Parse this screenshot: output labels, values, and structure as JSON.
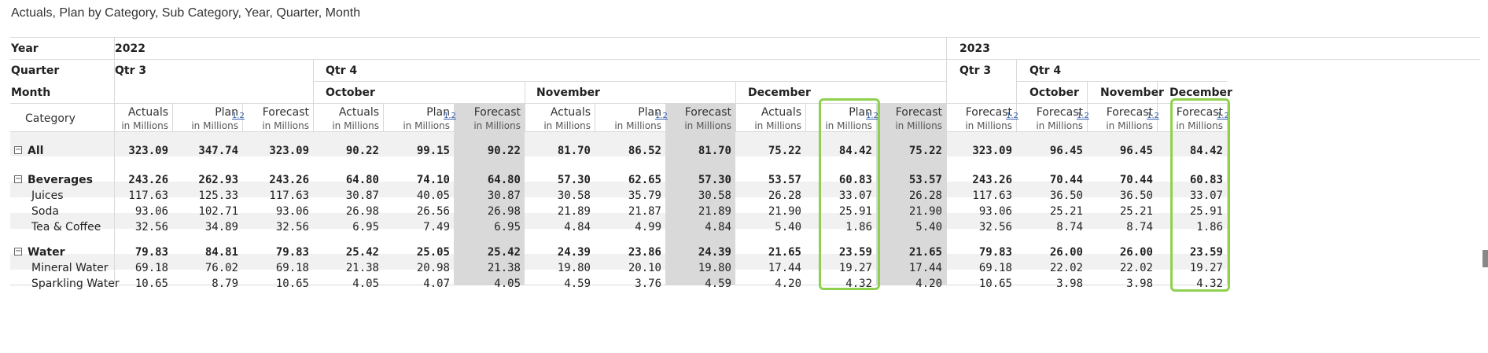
{
  "title": "Actuals, Plan by Category, Sub Category, Year, Quarter, Month",
  "row_labels": {
    "year": "Year",
    "quarter": "Quarter",
    "month": "Month",
    "category": "Category"
  },
  "years": [
    "2022",
    "2023"
  ],
  "quarters": [
    "Qtr 3",
    "Qtr 4",
    "Qtr 3",
    "Qtr 4"
  ],
  "months": [
    "October",
    "November",
    "December",
    "October",
    "November",
    "December"
  ],
  "columns": [
    {
      "label": "Actuals",
      "unit": "in Millions"
    },
    {
      "label": "Plan",
      "unit": "in Millions"
    },
    {
      "label": "Forecast",
      "unit": "in Millions"
    },
    {
      "label": "Actuals",
      "unit": "in Millions"
    },
    {
      "label": "Plan",
      "unit": "in Millions"
    },
    {
      "label": "Forecast",
      "unit": "in Millions"
    },
    {
      "label": "Actuals",
      "unit": "in Millions"
    },
    {
      "label": "Plan",
      "unit": "in Millions"
    },
    {
      "label": "Forecast",
      "unit": "in Millions"
    },
    {
      "label": "Actuals",
      "unit": "in Millions"
    },
    {
      "label": "Plan",
      "unit": "in Millions"
    },
    {
      "label": "Forecast",
      "unit": "in Millions"
    },
    {
      "label": "Forecast",
      "unit": "in Millions"
    },
    {
      "label": "Forecast",
      "unit": "in Millions"
    },
    {
      "label": "Forecast",
      "unit": "in Millions"
    },
    {
      "label": "Forecast",
      "unit": "in Millions"
    }
  ],
  "marker_label": "1.2",
  "expander_icon": "−",
  "rows": [
    {
      "label": "All",
      "values": [
        "323.09",
        "347.74",
        "323.09",
        "90.22",
        "99.15",
        "90.22",
        "81.70",
        "86.52",
        "81.70",
        "75.22",
        "84.42",
        "75.22",
        "323.09",
        "96.45",
        "96.45",
        "84.42"
      ]
    },
    {
      "label": "Beverages",
      "values": [
        "243.26",
        "262.93",
        "243.26",
        "64.80",
        "74.10",
        "64.80",
        "57.30",
        "62.65",
        "57.30",
        "53.57",
        "60.83",
        "53.57",
        "243.26",
        "70.44",
        "70.44",
        "60.83"
      ]
    },
    {
      "label": "Juices",
      "values": [
        "117.63",
        "125.33",
        "117.63",
        "30.87",
        "40.05",
        "30.87",
        "30.58",
        "35.79",
        "30.58",
        "26.28",
        "33.07",
        "26.28",
        "117.63",
        "36.50",
        "36.50",
        "33.07"
      ]
    },
    {
      "label": "Soda",
      "values": [
        "93.06",
        "102.71",
        "93.06",
        "26.98",
        "26.56",
        "26.98",
        "21.89",
        "21.87",
        "21.89",
        "21.90",
        "25.91",
        "21.90",
        "93.06",
        "25.21",
        "25.21",
        "25.91"
      ]
    },
    {
      "label": "Tea & Coffee",
      "values": [
        "32.56",
        "34.89",
        "32.56",
        "6.95",
        "7.49",
        "6.95",
        "4.84",
        "4.99",
        "4.84",
        "5.40",
        "1.86",
        "5.40",
        "32.56",
        "8.74",
        "8.74",
        "1.86"
      ]
    },
    {
      "label": "Water",
      "values": [
        "79.83",
        "84.81",
        "79.83",
        "25.42",
        "25.05",
        "25.42",
        "24.39",
        "23.86",
        "24.39",
        "21.65",
        "23.59",
        "21.65",
        "79.83",
        "26.00",
        "26.00",
        "23.59"
      ]
    },
    {
      "label": "Mineral Water",
      "values": [
        "69.18",
        "76.02",
        "69.18",
        "21.38",
        "20.98",
        "21.38",
        "19.80",
        "20.10",
        "19.80",
        "17.44",
        "19.27",
        "17.44",
        "69.18",
        "22.02",
        "22.02",
        "19.27"
      ]
    },
    {
      "label": "Sparkling Water",
      "values": [
        "10.65",
        "8.79",
        "10.65",
        "4.05",
        "4.07",
        "4.05",
        "4.59",
        "3.76",
        "4.59",
        "4.20",
        "4.32",
        "4.20",
        "10.65",
        "3.98",
        "3.98",
        "4.32"
      ]
    }
  ],
  "colors": {
    "highlight": "#8fd14f",
    "shade": "#d9d9d9",
    "link": "#2f5aa5"
  }
}
